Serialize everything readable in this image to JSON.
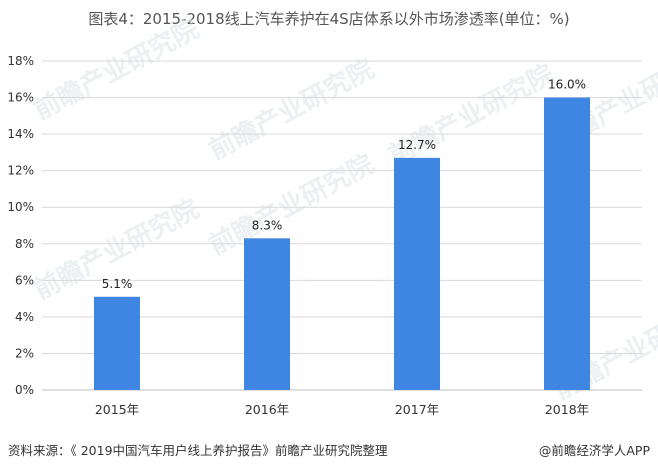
{
  "chart_data": {
    "type": "bar",
    "title": "图表4：2015-2018线上汽车养护在4S店体系以外市场渗透率(单位：%)",
    "categories": [
      "2015年",
      "2016年",
      "2017年",
      "2018年"
    ],
    "values": [
      5.1,
      8.3,
      12.7,
      16.0
    ],
    "data_labels": [
      "5.1%",
      "8.3%",
      "12.7%",
      "16.0%"
    ],
    "yticks": [
      0,
      2,
      4,
      6,
      8,
      10,
      12,
      14,
      16,
      18
    ],
    "ytick_labels": [
      "0%",
      "2%",
      "4%",
      "6%",
      "8%",
      "10%",
      "12%",
      "14%",
      "16%",
      "18%"
    ],
    "ylim": [
      0,
      18
    ],
    "grid": true,
    "bar_color": "#3f85e2",
    "grid_color": "#d9d9d9"
  },
  "source": "资料来源：《 2019中国汽车用户线上养护报告》前瞻产业研究院整理",
  "brand": "@前瞻经济学人APP",
  "watermark": "前瞻产业研究院"
}
